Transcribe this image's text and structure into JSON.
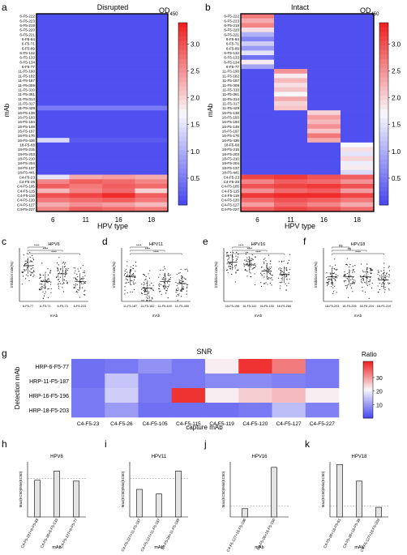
{
  "panels": {
    "a": {
      "letter": "a",
      "title": "Disrupted",
      "xlabel": "HPV type",
      "ylabel": "mAb",
      "cbar_label": "OD",
      "cbar_sub": "450",
      "cbar_ticks": [
        "3.0",
        "2.5",
        "2.0",
        "1.5",
        "1.0",
        "0.5"
      ]
    },
    "b": {
      "letter": "b",
      "title": "Intact",
      "xlabel": "HPV type",
      "ylabel": "mAb",
      "cbar_label": "OD",
      "cbar_sub": "450",
      "cbar_ticks": [
        "3.0",
        "2.5",
        "2.0",
        "1.5",
        "1.0",
        "0.5"
      ]
    },
    "g": {
      "letter": "g",
      "title": "SNR",
      "ylabel": "Detection mAb",
      "xlabel": "capture mAb",
      "cbar_label": "Ratio",
      "cbar_ticks": [
        "30",
        "20",
        "10"
      ]
    }
  },
  "chart_data": [
    {
      "id": "a",
      "type": "heatmap",
      "title": "Disrupted",
      "xlabel": "HPV type",
      "ylabel": "mAb",
      "columns": [
        "6",
        "11",
        "16",
        "18"
      ],
      "rows": [
        "6-F5-222",
        "6-F5-223",
        "6-F5-219",
        "6-F5-220",
        "6-F5-221",
        "6-F5-84",
        "6-F5-71",
        "6-F5-89",
        "6-F5-132",
        "6-F5-133",
        "6-F5-134",
        "6-F5-77",
        "11-F5-190",
        "11-F5-182",
        "11-F5-187",
        "11-F5-309",
        "11-F5-310",
        "11-F5-361",
        "11-F5-314",
        "11-F5-317",
        "11-F5-429",
        "16-F5-138",
        "16-F5-193",
        "16-F5-194",
        "16-F5-149",
        "16-F5-197",
        "16-F5-176",
        "16-F5-436",
        "18-F5-68",
        "18-F5-215",
        "18-F5-203",
        "18-F5-210",
        "18-F5-204",
        "18-F5-137",
        "18-F5-441",
        "C4-F5-23",
        "C4-F5-26",
        "C4-F5-105",
        "C4-F5-115",
        "C4-F5-119",
        "C4-F5-120",
        "C4-F5-127",
        "C4-F5-227"
      ],
      "values": [
        [
          0.1,
          0.1,
          0.1,
          0.1
        ],
        [
          0.1,
          0.1,
          0.1,
          0.1
        ],
        [
          0.1,
          0.1,
          0.1,
          0.1
        ],
        [
          0.1,
          0.1,
          0.1,
          0.1
        ],
        [
          0.1,
          0.1,
          0.1,
          0.1
        ],
        [
          0.1,
          0.1,
          0.1,
          0.1
        ],
        [
          0.1,
          0.1,
          0.1,
          0.1
        ],
        [
          0.1,
          0.1,
          0.1,
          0.1
        ],
        [
          0.1,
          0.1,
          0.1,
          0.1
        ],
        [
          0.1,
          0.1,
          0.1,
          0.1
        ],
        [
          0.1,
          0.1,
          0.1,
          0.1
        ],
        [
          0.1,
          0.1,
          0.1,
          0.1
        ],
        [
          0.1,
          0.1,
          0.1,
          0.1
        ],
        [
          0.1,
          0.1,
          0.1,
          0.1
        ],
        [
          0.1,
          0.1,
          0.1,
          0.1
        ],
        [
          0.1,
          0.1,
          0.1,
          0.1
        ],
        [
          0.1,
          0.1,
          0.1,
          0.1
        ],
        [
          0.1,
          0.1,
          0.1,
          0.1
        ],
        [
          0.1,
          0.1,
          0.1,
          0.1
        ],
        [
          0.1,
          0.1,
          0.1,
          0.1
        ],
        [
          0.5,
          0.5,
          0.5,
          0.5
        ],
        [
          0.1,
          0.1,
          0.1,
          0.1
        ],
        [
          0.1,
          0.1,
          0.1,
          0.1
        ],
        [
          0.1,
          0.1,
          0.1,
          0.1
        ],
        [
          0.1,
          0.1,
          0.1,
          0.1
        ],
        [
          0.1,
          0.1,
          0.1,
          0.1
        ],
        [
          0.1,
          0.1,
          0.1,
          0.1
        ],
        [
          1.4,
          0.2,
          0.2,
          0.2
        ],
        [
          0.1,
          0.1,
          0.1,
          0.1
        ],
        [
          0.1,
          0.1,
          0.1,
          0.1
        ],
        [
          0.1,
          0.1,
          0.1,
          0.1
        ],
        [
          0.1,
          0.1,
          0.1,
          0.1
        ],
        [
          0.1,
          0.1,
          0.1,
          0.1
        ],
        [
          0.1,
          0.1,
          0.1,
          0.1
        ],
        [
          0.1,
          0.1,
          0.1,
          0.1
        ],
        [
          1.5,
          2.3,
          2.4,
          2.3
        ],
        [
          2.6,
          2.9,
          2.8,
          2.6
        ],
        [
          2.9,
          2.7,
          2.9,
          2.8
        ],
        [
          2.2,
          2.6,
          2.8,
          2.0
        ],
        [
          3.0,
          3.1,
          3.3,
          2.9
        ],
        [
          2.7,
          2.8,
          2.9,
          2.7
        ],
        [
          2.3,
          2.5,
          2.4,
          2.2
        ],
        [
          2.6,
          2.9,
          2.8,
          2.7
        ]
      ],
      "colorbar": {
        "label": "OD450",
        "range": [
          0,
          3.4
        ],
        "ticks": [
          0.5,
          1.0,
          1.5,
          2.0,
          2.5,
          3.0
        ]
      }
    },
    {
      "id": "b",
      "type": "heatmap",
      "title": "Intact",
      "xlabel": "HPV type",
      "ylabel": "mAb",
      "columns": [
        "6",
        "11",
        "16",
        "18"
      ],
      "rows": [
        "6-F5-222",
        "6-F5-223",
        "6-F5-219",
        "6-F5-220",
        "6-F5-221",
        "6-F5-84",
        "6-F5-71",
        "6-F5-89",
        "6-F5-132",
        "6-F5-133",
        "6-F5-134",
        "6-F5-77",
        "11-F5-190",
        "11-F5-182",
        "11-F5-187",
        "11-F5-309",
        "11-F5-310",
        "11-F5-361",
        "11-F5-314",
        "11-F5-317",
        "11-F5-429",
        "16-F5-138",
        "16-F5-193",
        "16-F5-194",
        "16-F5-149",
        "16-F5-197",
        "16-F5-176",
        "16-F5-436",
        "18-F5-68",
        "18-F5-215",
        "18-F5-203",
        "18-F5-210",
        "18-F5-204",
        "18-F5-137",
        "18-F5-441",
        "C4-F5-23",
        "C4-F5-26",
        "C4-F5-105",
        "C4-F5-115",
        "C4-F5-119",
        "C4-F5-120",
        "C4-F5-127",
        "C4-F5-227"
      ],
      "values": [
        [
          2.7,
          0.1,
          0.1,
          0.1
        ],
        [
          2.3,
          0.1,
          0.1,
          0.1
        ],
        [
          2.6,
          0.1,
          0.1,
          0.1
        ],
        [
          1.9,
          0.1,
          0.1,
          0.1
        ],
        [
          1.0,
          0.1,
          0.1,
          0.1
        ],
        [
          0.6,
          0.1,
          0.1,
          0.1
        ],
        [
          1.3,
          0.1,
          0.1,
          0.1
        ],
        [
          0.8,
          0.1,
          0.1,
          0.1
        ],
        [
          1.5,
          0.1,
          0.1,
          0.1
        ],
        [
          0.4,
          0.1,
          0.1,
          0.1
        ],
        [
          1.8,
          0.1,
          0.1,
          0.1
        ],
        [
          0.9,
          0.1,
          0.1,
          0.1
        ],
        [
          0.1,
          2.5,
          0.1,
          0.1
        ],
        [
          0.1,
          1.8,
          0.1,
          0.1
        ],
        [
          0.1,
          2.2,
          0.1,
          0.1
        ],
        [
          0.1,
          1.9,
          0.1,
          0.1
        ],
        [
          0.1,
          2.1,
          0.1,
          0.1
        ],
        [
          0.1,
          1.7,
          0.1,
          0.1
        ],
        [
          0.1,
          2.3,
          0.1,
          0.1
        ],
        [
          0.1,
          2.0,
          0.1,
          0.1
        ],
        [
          0.1,
          2.1,
          0.1,
          0.1
        ],
        [
          0.1,
          0.1,
          2.0,
          0.1
        ],
        [
          0.1,
          0.1,
          2.4,
          0.1
        ],
        [
          0.1,
          0.1,
          2.2,
          0.1
        ],
        [
          0.1,
          0.1,
          2.5,
          0.1
        ],
        [
          0.1,
          0.1,
          2.1,
          0.1
        ],
        [
          0.1,
          0.1,
          2.7,
          0.1
        ],
        [
          0.1,
          0.1,
          2.3,
          0.1
        ],
        [
          0.1,
          0.1,
          0.1,
          1.7
        ],
        [
          0.1,
          0.1,
          0.1,
          1.9
        ],
        [
          0.1,
          0.1,
          0.1,
          1.5
        ],
        [
          0.1,
          0.1,
          0.1,
          2.0
        ],
        [
          0.1,
          0.1,
          0.1,
          1.6
        ],
        [
          0.1,
          0.1,
          0.1,
          1.8
        ],
        [
          0.1,
          0.1,
          0.1,
          1.4
        ],
        [
          3.1,
          3.2,
          3.0,
          2.9
        ],
        [
          2.6,
          2.9,
          2.8,
          2.5
        ],
        [
          3.0,
          3.1,
          3.2,
          3.0
        ],
        [
          2.5,
          2.8,
          2.9,
          2.4
        ],
        [
          3.2,
          3.3,
          3.3,
          3.1
        ],
        [
          2.8,
          3.0,
          2.9,
          2.7
        ],
        [
          2.4,
          2.8,
          2.6,
          2.3
        ],
        [
          2.9,
          3.1,
          3.0,
          2.8
        ]
      ],
      "colorbar": {
        "label": "OD450",
        "range": [
          0,
          3.4
        ],
        "ticks": [
          0.5,
          1.0,
          1.5,
          2.0,
          2.5,
          3.0
        ]
      }
    },
    {
      "id": "c",
      "type": "scatter",
      "title": "HPV6",
      "xlabel": "mAb",
      "ylabel": "Inhibition rate(%)",
      "categories": [
        "6-F5-77",
        "6-F5-71",
        "6-F5-73",
        "6-F5-223"
      ],
      "means": [
        80,
        45,
        62,
        45
      ],
      "sig": [
        {
          "a": 0,
          "b": 1,
          "label": "****"
        },
        {
          "a": 0,
          "b": 2,
          "label": "****"
        },
        {
          "a": 0,
          "b": 3,
          "label": "****"
        }
      ]
    },
    {
      "id": "d",
      "type": "scatter",
      "title": "HPV11",
      "xlabel": "mAb",
      "ylabel": "Inhibition rate(%)",
      "categories": [
        "11-F5-187",
        "11-F5-182",
        "11-F5-449",
        "11-F5-450"
      ],
      "means": [
        55,
        30,
        45,
        40
      ],
      "sig": [
        {
          "a": 0,
          "b": 1,
          "label": "****"
        },
        {
          "a": 0,
          "b": 2,
          "label": "****"
        },
        {
          "a": 0,
          "b": 3,
          "label": "****"
        }
      ]
    },
    {
      "id": "e",
      "type": "scatter",
      "title": "HPV16",
      "xlabel": "mAb",
      "ylabel": "Inhibition rate(%)",
      "categories": [
        "16-F5-196",
        "16-F5-141",
        "16-F5-150",
        "16-F5-260"
      ],
      "means": [
        88,
        82,
        68,
        60
      ],
      "sig": [
        {
          "a": 0,
          "b": 1,
          "label": "****"
        },
        {
          "a": 0,
          "b": 2,
          "label": "****"
        },
        {
          "a": 0,
          "b": 3,
          "label": "****"
        }
      ]
    },
    {
      "id": "f",
      "type": "scatter",
      "title": "HPV18",
      "xlabel": "mAb",
      "ylabel": "Inhibition rate(%)",
      "categories": [
        "18-F5-203",
        "18-F5-205",
        "18-F5-204",
        "18-F5-210"
      ],
      "means": [
        55,
        55,
        55,
        48
      ],
      "sig": [
        {
          "a": 0,
          "b": 1,
          "label": "ns"
        },
        {
          "a": 0,
          "b": 2,
          "label": "ns"
        },
        {
          "a": 0,
          "b": 3,
          "label": "****"
        }
      ]
    },
    {
      "id": "g",
      "type": "heatmap",
      "title": "SNR",
      "xlabel": "capture mAb",
      "ylabel": "Detection mAb",
      "columns": [
        "C4-F5-23",
        "C4-F5-26",
        "C4-F5-105",
        "C4-F5-115",
        "C4-F5-119",
        "C4-F5-120",
        "C4-F5-127",
        "C4-F5-227"
      ],
      "rows": [
        "HRP-6-F5-77",
        "HRP-11-F5-187",
        "HRP-16-F5-196",
        "HRP-18-F5-203"
      ],
      "values": [
        [
          5,
          6,
          9,
          6,
          22,
          40,
          33,
          6
        ],
        [
          5,
          15,
          6,
          6,
          8,
          8,
          7,
          6
        ],
        [
          6,
          16,
          6,
          40,
          22,
          25,
          27,
          22
        ],
        [
          6,
          10,
          5,
          5,
          5,
          6,
          14,
          7
        ]
      ],
      "colorbar": {
        "label": "Ratio",
        "range": [
          0,
          42
        ],
        "ticks": [
          10,
          20,
          30
        ]
      }
    },
    {
      "id": "h",
      "type": "bar",
      "title": "HPV6",
      "xlabel": "mAb",
      "ylabel": "Max(EC50)/Min(EC50)",
      "categories": [
        "C4-F5-227+6-F5-89",
        "C4-F5-26+6-F5-133",
        "C4-F5-127+6-F5-77"
      ],
      "values": [
        4.0,
        5.0,
        3.9
      ],
      "reference": 4.2,
      "ylim": [
        0,
        6
      ]
    },
    {
      "id": "i",
      "type": "bar",
      "title": "HPV11",
      "xlabel": "mAb",
      "ylabel": "Max(EC50)/Min(EC50)",
      "categories": [
        "C4-F5-227+11-F5-187",
        "C4-F5-127+11-F5-187",
        "C4-F5-26+11-F5-189"
      ],
      "values": [
        3.0,
        2.5,
        5.0
      ],
      "reference": 4.2,
      "ylim": [
        0,
        6
      ]
    },
    {
      "id": "j",
      "type": "bar",
      "title": "HPV16",
      "xlabel": "mAb",
      "ylabel": "Max(EC50)/Min(EC50)",
      "categories": [
        "C4-F5-127+16-F5-196",
        "C4-F5-26+16-F5-150"
      ],
      "values": [
        3.0,
        18.0
      ],
      "reference": 4.0,
      "ylim": [
        0,
        20
      ]
    },
    {
      "id": "k",
      "type": "bar",
      "title": "HPV18",
      "xlabel": "mAb",
      "ylabel": "Max(EC50)/Min(EC50)",
      "categories": [
        "C4-F5-26+18-F5-61",
        "C4-F5-26+18-F5-38",
        "C4-F5-127+18-F5-203"
      ],
      "values": [
        19.0,
        13.0,
        3.5
      ],
      "reference": 4.0,
      "ylim": [
        0,
        20
      ]
    }
  ]
}
